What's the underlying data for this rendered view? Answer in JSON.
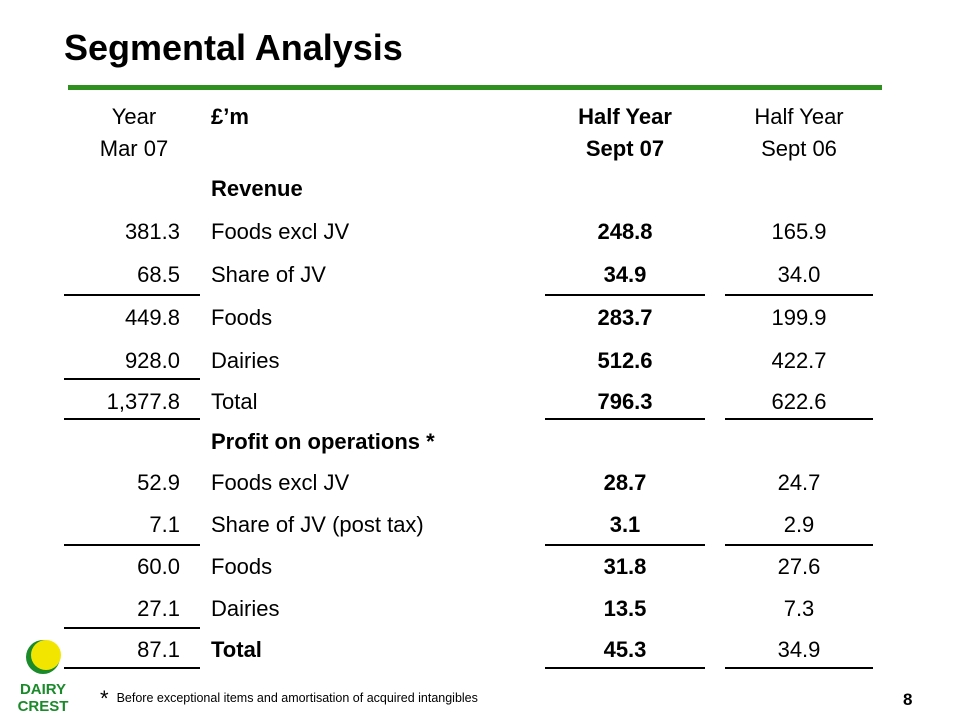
{
  "title": "Segmental Analysis",
  "headers": {
    "col1_line1": "Year",
    "col1_line2": "Mar 07",
    "col2": "£’m",
    "col3_line1": "Half Year",
    "col3_line2": "Sept 07",
    "col4_line1": "Half Year",
    "col4_line2": "Sept 06"
  },
  "rows": [
    {
      "v1": "",
      "label": "Revenue",
      "v3": "",
      "v4": ""
    },
    {
      "v1": "381.3",
      "label": "Foods excl JV",
      "v3": "248.8",
      "v4": "165.9"
    },
    {
      "v1": "68.5",
      "label": "Share of JV",
      "v3": "34.9",
      "v4": "34.0"
    },
    {
      "v1": "449.8",
      "label": "Foods",
      "v3": "283.7",
      "v4": "199.9"
    },
    {
      "v1": "928.0",
      "label": "Dairies",
      "v3": "512.6",
      "v4": "422.7"
    },
    {
      "v1": "1,377.8",
      "label": "Total",
      "v3": "796.3",
      "v4": "622.6"
    },
    {
      "v1": "",
      "label": "Profit on operations *",
      "v3": "",
      "v4": ""
    },
    {
      "v1": "52.9",
      "label": "Foods excl JV",
      "v3": "28.7",
      "v4": "24.7"
    },
    {
      "v1": "7.1",
      "label": "Share of JV (post tax)",
      "v3": "3.1",
      "v4": "2.9"
    },
    {
      "v1": "60.0",
      "label": "Foods",
      "v3": "31.8",
      "v4": "27.6"
    },
    {
      "v1": "27.1",
      "label": "Dairies",
      "v3": "13.5",
      "v4": "7.3"
    },
    {
      "v1": "87.1",
      "label": "Total",
      "v3": "45.3",
      "v4": "34.9"
    }
  ],
  "footnote": {
    "marker": "*",
    "text": "Before exceptional items and amortisation of acquired intangibles"
  },
  "page_number": "8",
  "logo": {
    "line1": "DAIRY",
    "line2": "CREST",
    "colors": {
      "sun": "#f2e600",
      "text": "#1a8a2a"
    }
  },
  "colors": {
    "rule": "#2f8f1f"
  }
}
